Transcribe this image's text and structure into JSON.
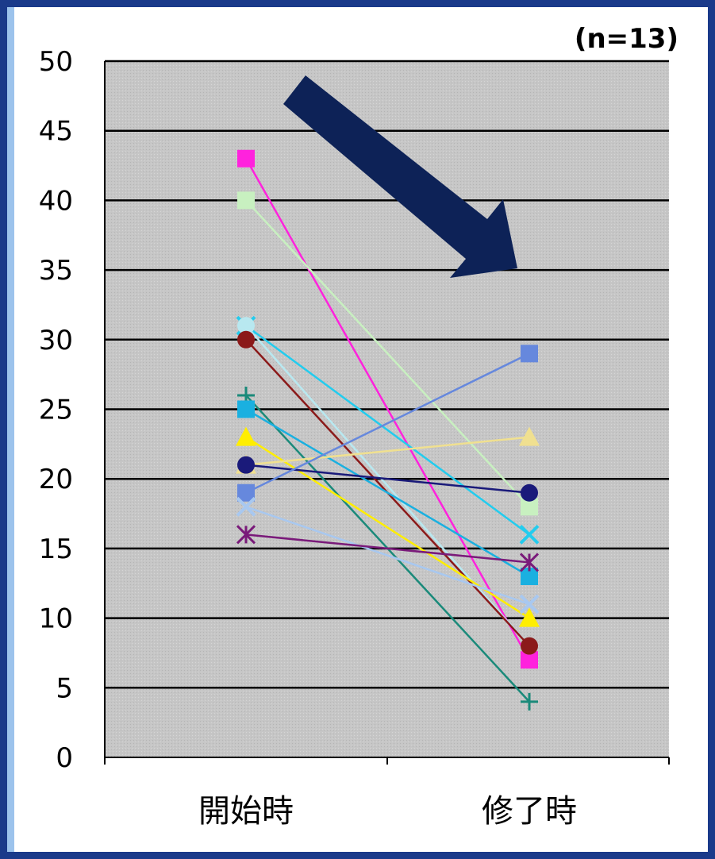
{
  "chart_data": {
    "type": "line",
    "title": "",
    "annotation": "(n=13)",
    "categories": [
      "開始時",
      "修了時"
    ],
    "ylim": [
      0,
      50
    ],
    "yticks": [
      "0",
      "5",
      "10",
      "15",
      "20",
      "25",
      "30",
      "35",
      "40",
      "45",
      "50"
    ],
    "grid": true,
    "legend": "none",
    "trend_arrow": "down",
    "plot_background": "#c8c8c8",
    "series": [
      {
        "values": [
          43,
          7
        ],
        "color": "#ff22dd",
        "marker": "square"
      },
      {
        "values": [
          40,
          18
        ],
        "color": "#c8f0c0",
        "marker": "square"
      },
      {
        "values": [
          31,
          16
        ],
        "color": "#22ccee",
        "marker": "x"
      },
      {
        "values": [
          31,
          8
        ],
        "color": "#b8e8f0",
        "marker": "circle"
      },
      {
        "values": [
          30,
          8
        ],
        "color": "#8b1a1a",
        "marker": "circle"
      },
      {
        "values": [
          26,
          4
        ],
        "color": "#1a8a7a",
        "marker": "plus"
      },
      {
        "values": [
          25,
          13
        ],
        "color": "#1ab0e0",
        "marker": "square"
      },
      {
        "values": [
          23,
          10
        ],
        "color": "#ffee00",
        "marker": "triangle"
      },
      {
        "values": [
          21,
          23
        ],
        "color": "#f0e090",
        "marker": "triangle"
      },
      {
        "values": [
          21,
          19
        ],
        "color": "#1a1a7a",
        "marker": "circle"
      },
      {
        "values": [
          19,
          29
        ],
        "color": "#6688dd",
        "marker": "square"
      },
      {
        "values": [
          18,
          11
        ],
        "color": "#a8c8f0",
        "marker": "x"
      },
      {
        "values": [
          16,
          14
        ],
        "color": "#7a1a7a",
        "marker": "asterisk"
      }
    ]
  }
}
